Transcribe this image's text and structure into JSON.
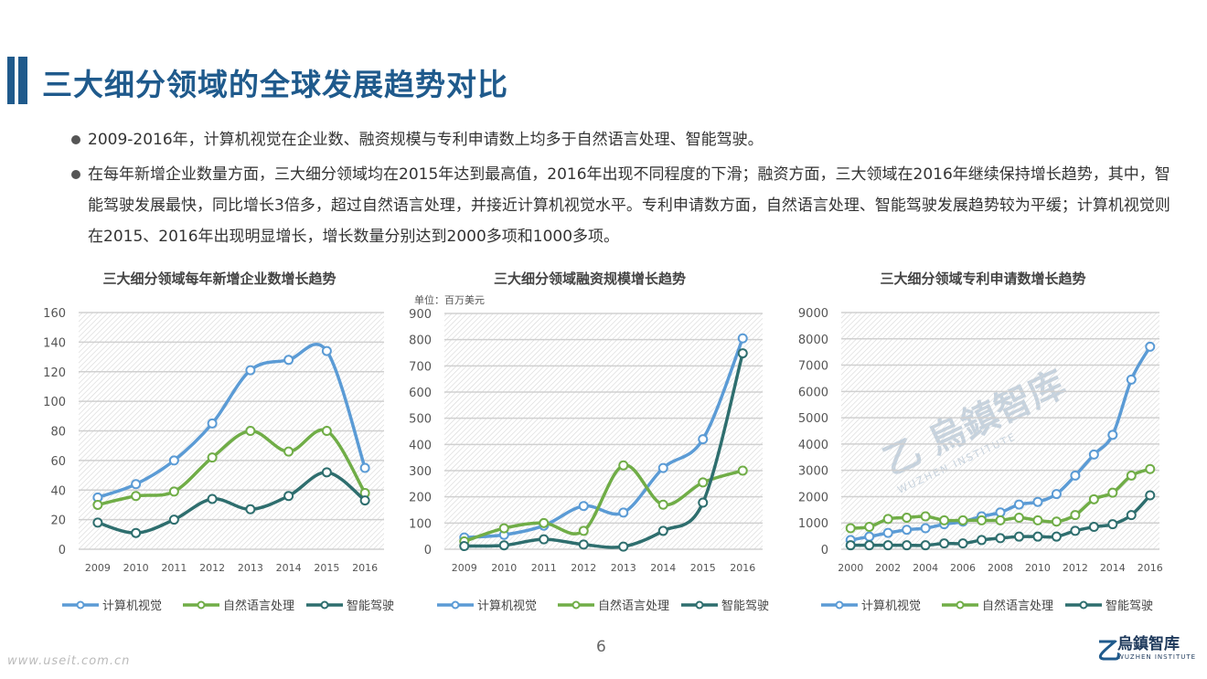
{
  "title": "三大细分领域的全球发展趋势对比",
  "bullets": [
    "2009-2016年，计算机视觉在企业数、融资规模与专利申请数上均多于自然语言处理、智能驾驶。",
    "在每年新增企业数量方面，三大细分领域均在2015年达到最高值，2016年出现不同程度的下滑；融资方面，三大领域在2016年继续保持增长趋势，其中，智能驾驶发展最快，同比增长3倍多，超过自然语言处理，并接近计算机视觉水平。专利申请数方面，自然语言处理、智能驾驶发展趋势较为平缓；计算机视觉则在2015、2016年出现明显增长，增长数量分别达到2000多项和1000多项。"
  ],
  "page_number": "6",
  "site": "www.useit.com.cn",
  "logo": {
    "cn": "烏鎮智库",
    "en": "WUZHEN INSTITUTE"
  },
  "colors": {
    "cv": "#5b9bd5",
    "nlp": "#70ad47",
    "ad": "#2e6e6e",
    "title": "#1f5a8c"
  },
  "chart_data": [
    {
      "type": "line",
      "title": "三大细分领域每年新增企业数增长趋势",
      "unit": "",
      "categories": [
        "2009",
        "2010",
        "2011",
        "2012",
        "2013",
        "2014",
        "2015",
        "2016"
      ],
      "ylim": [
        0,
        160
      ],
      "yticks": [
        0,
        20,
        40,
        60,
        80,
        100,
        120,
        140,
        160
      ],
      "grid": true,
      "legend": "bottom",
      "series": [
        {
          "name": "计算机视觉",
          "values": [
            35,
            44,
            60,
            85,
            121,
            128,
            134,
            55
          ]
        },
        {
          "name": "自然语言处理",
          "values": [
            30,
            36,
            39,
            62,
            80,
            66,
            80,
            38
          ]
        },
        {
          "name": "智能驾驶",
          "values": [
            18,
            11,
            20,
            34,
            27,
            36,
            52,
            33
          ]
        }
      ]
    },
    {
      "type": "line",
      "title": "三大细分领域融资规模增长趋势",
      "unit": "单位：百万美元",
      "categories": [
        "2009",
        "2010",
        "2011",
        "2012",
        "2013",
        "2014",
        "2015",
        "2016"
      ],
      "ylim": [
        0,
        900
      ],
      "yticks": [
        0,
        100,
        200,
        300,
        400,
        500,
        600,
        700,
        800,
        900
      ],
      "grid": true,
      "legend": "bottom",
      "series": [
        {
          "name": "计算机视觉",
          "values": [
            45,
            55,
            90,
            165,
            140,
            310,
            420,
            805
          ]
        },
        {
          "name": "自然语言处理",
          "values": [
            30,
            80,
            100,
            70,
            320,
            170,
            255,
            300
          ]
        },
        {
          "name": "智能驾驶",
          "values": [
            12,
            15,
            38,
            18,
            10,
            70,
            178,
            748
          ]
        }
      ]
    },
    {
      "type": "line",
      "title": "三大细分领域专利申请数增长趋势",
      "unit": "",
      "categories": [
        "2000",
        "2001",
        "2002",
        "2003",
        "2004",
        "2005",
        "2006",
        "2007",
        "2008",
        "2009",
        "2010",
        "2011",
        "2012",
        "2013",
        "2014",
        "2015",
        "2016"
      ],
      "xticklabels": [
        "2000",
        "",
        "2002",
        "",
        "2004",
        "",
        "2006",
        "",
        "2008",
        "",
        "2010",
        "",
        "2012",
        "",
        "2014",
        "",
        "2016"
      ],
      "ylim": [
        0,
        9000
      ],
      "yticks": [
        0,
        1000,
        2000,
        3000,
        4000,
        5000,
        6000,
        7000,
        8000,
        9000
      ],
      "grid": true,
      "legend": "bottom",
      "series": [
        {
          "name": "计算机视觉",
          "values": [
            350,
            480,
            620,
            740,
            800,
            950,
            1050,
            1250,
            1400,
            1700,
            1800,
            2100,
            2800,
            3600,
            4350,
            6450,
            7700
          ]
        },
        {
          "name": "自然语言处理",
          "values": [
            800,
            850,
            1150,
            1200,
            1250,
            1100,
            1100,
            1100,
            1100,
            1200,
            1100,
            1050,
            1300,
            1900,
            2150,
            2800,
            3050
          ]
        },
        {
          "name": "智能驾驶",
          "values": [
            150,
            150,
            150,
            150,
            150,
            220,
            220,
            350,
            420,
            480,
            480,
            480,
            700,
            850,
            950,
            1300,
            2050
          ]
        }
      ]
    }
  ]
}
